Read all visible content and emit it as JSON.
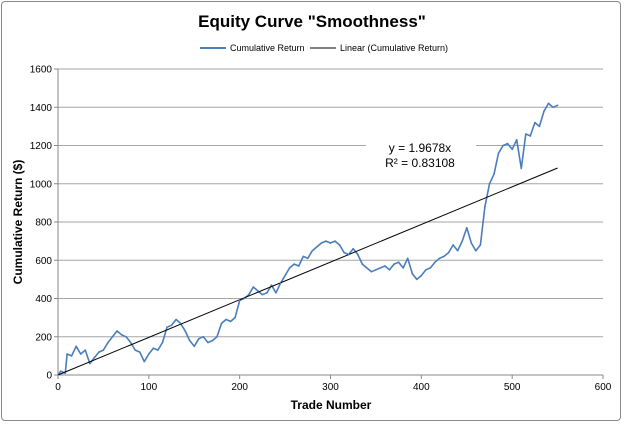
{
  "chart_data": {
    "type": "line",
    "title": "Equity Curve \"Smoothness\"",
    "xlabel": "Trade Number",
    "ylabel": "Cumulative Return ($)",
    "xlim": [
      0,
      600
    ],
    "ylim": [
      0,
      1600
    ],
    "xticks": [
      "0",
      "100",
      "200",
      "300",
      "400",
      "500",
      "600"
    ],
    "yticks": [
      "0",
      "200",
      "400",
      "600",
      "800",
      "1000",
      "1200",
      "1400",
      "1600"
    ],
    "grid": "horizontal",
    "legend_position": "top",
    "series": [
      {
        "name": "Cumulative Return",
        "color": "#4a7ebb",
        "x": [
          0,
          3,
          8,
          10,
          15,
          20,
          25,
          30,
          35,
          40,
          45,
          50,
          55,
          60,
          65,
          70,
          75,
          80,
          85,
          90,
          95,
          100,
          105,
          110,
          115,
          120,
          125,
          130,
          135,
          140,
          145,
          150,
          155,
          160,
          165,
          170,
          175,
          180,
          185,
          190,
          195,
          200,
          205,
          210,
          215,
          220,
          225,
          230,
          235,
          240,
          245,
          250,
          255,
          260,
          265,
          270,
          275,
          280,
          285,
          290,
          295,
          300,
          305,
          310,
          315,
          320,
          325,
          330,
          335,
          340,
          345,
          350,
          355,
          360,
          365,
          370,
          375,
          380,
          385,
          390,
          395,
          400,
          405,
          410,
          415,
          420,
          425,
          430,
          435,
          440,
          445,
          450,
          455,
          460,
          465,
          470,
          475,
          480,
          485,
          490,
          495,
          500,
          505,
          510,
          515,
          520,
          525,
          530,
          535,
          540,
          545,
          550
        ],
        "y": [
          0,
          20,
          10,
          110,
          100,
          150,
          110,
          130,
          60,
          90,
          120,
          130,
          170,
          200,
          230,
          210,
          200,
          170,
          130,
          120,
          70,
          110,
          140,
          130,
          170,
          250,
          260,
          290,
          270,
          230,
          180,
          150,
          190,
          200,
          170,
          180,
          200,
          270,
          290,
          280,
          300,
          390,
          400,
          420,
          460,
          440,
          420,
          430,
          470,
          430,
          480,
          520,
          560,
          580,
          570,
          620,
          610,
          650,
          670,
          690,
          700,
          690,
          700,
          680,
          640,
          630,
          660,
          630,
          580,
          560,
          540,
          550,
          560,
          570,
          550,
          580,
          590,
          560,
          610,
          530,
          500,
          520,
          550,
          560,
          590,
          610,
          620,
          640,
          680,
          650,
          700,
          770,
          690,
          650,
          680,
          880,
          1000,
          1050,
          1160,
          1200,
          1210,
          1180,
          1230,
          1080,
          1260,
          1250,
          1320,
          1300,
          1380,
          1420,
          1400,
          1410
        ]
      },
      {
        "name": "Linear (Cumulative Return)",
        "color": "#000000",
        "slope": 1.9678,
        "x_range": [
          0,
          550
        ]
      }
    ],
    "annotations": [
      "y = 1.9678x",
      "R² = 0.83108"
    ]
  }
}
